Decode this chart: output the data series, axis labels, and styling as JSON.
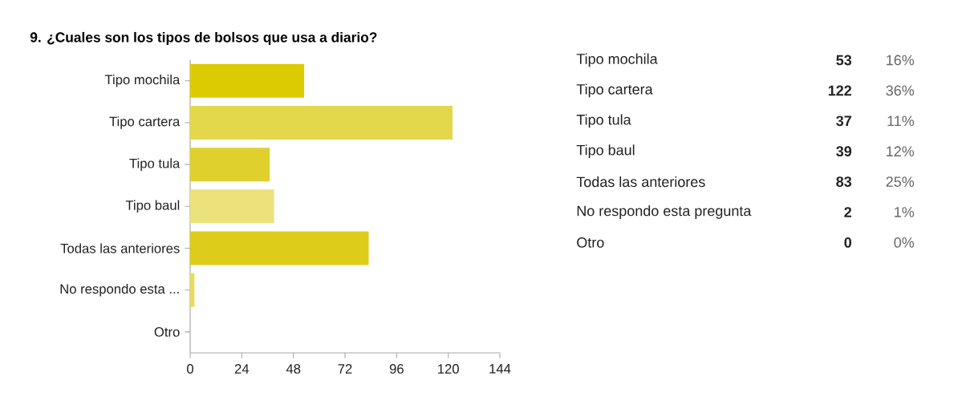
{
  "chart_data": {
    "type": "bar",
    "orientation": "horizontal",
    "title": "9. ¿Cuales son los tipos de bolsos que usa a diario?",
    "categories": [
      "Tipo mochila",
      "Tipo cartera",
      "Tipo tula",
      "Tipo baul",
      "Todas las anteriores",
      "No respondo esta ...",
      "Otro"
    ],
    "values": [
      53,
      122,
      37,
      39,
      83,
      2,
      0
    ],
    "colors": [
      "#dccb00",
      "#e3d84c",
      "#e0d02e",
      "#ebe27c",
      "#ddcd1a",
      "#e8dc5c",
      "#d8c800"
    ],
    "xlim": [
      0,
      144
    ],
    "xticks": [
      0,
      24,
      48,
      72,
      96,
      120,
      144
    ],
    "annotations": [
      "Tipo mochila",
      "53",
      "16%",
      "Tipo cartera",
      "122",
      "36%",
      "Tipo tula",
      "37",
      "11%",
      "Tipo baul",
      "39",
      "12%",
      "Todas las anteriores",
      "83",
      "25%",
      "No respondo esta pregunta",
      "2",
      "1%",
      "Otro",
      "0",
      "0%"
    ]
  }
}
